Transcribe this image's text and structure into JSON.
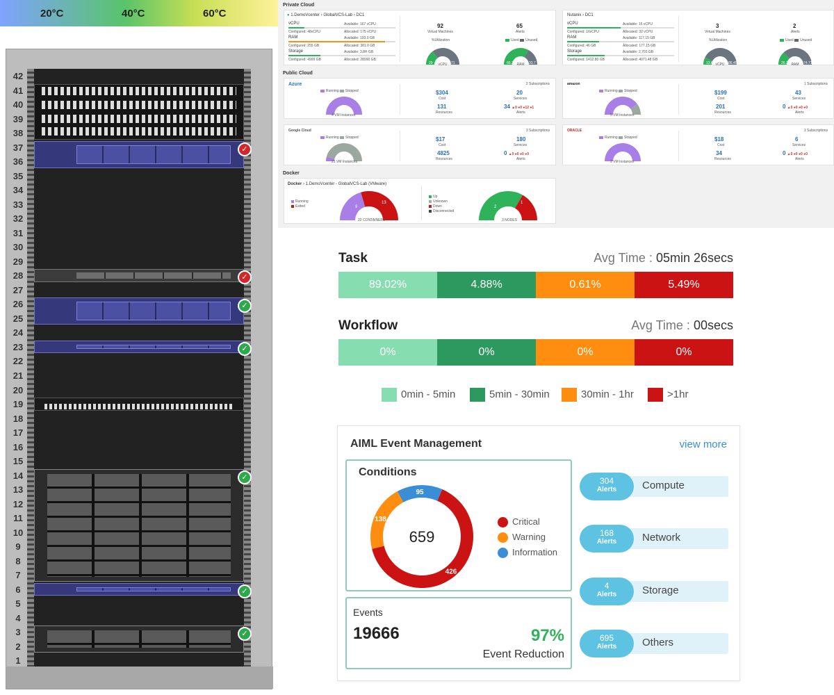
{
  "temperature": {
    "labels": [
      "20°C",
      "40°C",
      "60°C"
    ]
  },
  "rack": {
    "units": [
      "42",
      "41",
      "40",
      "39",
      "38",
      "37",
      "36",
      "35",
      "34",
      "33",
      "32",
      "31",
      "30",
      "29",
      "28",
      "27",
      "26",
      "25",
      "24",
      "23",
      "22",
      "21",
      "20",
      "19",
      "18",
      "17",
      "16",
      "15",
      "14",
      "13",
      "12",
      "11",
      "10",
      "9",
      "8",
      "7",
      "6",
      "5",
      "4",
      "3",
      "2",
      "1"
    ],
    "devices": [
      {
        "type": "patch",
        "top_u": 41,
        "size_u": 4,
        "status": ""
      },
      {
        "type": "blue",
        "top_u": 37,
        "size_u": 2,
        "status": "bad"
      },
      {
        "type": "gray",
        "top_u": 28,
        "size_u": 1,
        "status": "bad"
      },
      {
        "type": "blue",
        "top_u": 26,
        "size_u": 2,
        "status": "ok"
      },
      {
        "type": "blue",
        "top_u": 23,
        "size_u": 1,
        "status": "ok"
      },
      {
        "type": "switch",
        "top_u": 19,
        "size_u": 1,
        "status": ""
      },
      {
        "type": "storage",
        "top_u": 14,
        "size_u": 8,
        "status": "ok"
      },
      {
        "type": "blue",
        "top_u": 6,
        "size_u": 1,
        "status": "ok"
      },
      {
        "type": "storage",
        "top_u": 3,
        "size_u": 2,
        "status": "ok"
      }
    ]
  },
  "cloud": {
    "private_title": "Private Cloud",
    "public_title": "Public Cloud",
    "docker_title": "Docker",
    "vcenter": {
      "name": "1.DemoVcenter",
      "path": "GlobalVCS-Lab",
      "dc": "DC1",
      "metrics": [
        {
          "label": "vCPU",
          "avail": "Available: 167 vCPU",
          "conf": "Configured: 48vCPU",
          "alloc": "Allocated: 175 vCPU",
          "color": "#2fb35a",
          "pct": 0.15
        },
        {
          "label": "RAM",
          "avail": "Available: 193.0 GB",
          "conf": "Configured: 255 GB",
          "alloc": "Allocated: 381.0 GB",
          "color": "#ff8d10",
          "pct": 0.9
        },
        {
          "label": "Storage",
          "avail": "Available: 3.8H GB",
          "conf": "Configured: 4999 GB",
          "alloc": "Allocated: 28990 GB",
          "color": "#2fb35a",
          "pct": 0.3
        }
      ],
      "vms": "92",
      "vms_label": "Virtual Machines",
      "alerts": "65",
      "alerts_label": "Alerts",
      "util_label": "%Utilization",
      "used_label": "Used",
      "unused_label": "Unused",
      "gauge1": {
        "label": "vCPU",
        "used": "29",
        "unused": "71",
        "pct": 0.29
      },
      "gauge2": {
        "label": "RAM",
        "used": "66.3",
        "unused": "33.7",
        "pct": 0.66
      }
    },
    "nutanix": {
      "name": "Nutanix",
      "dc": "DC1",
      "metrics": [
        {
          "label": "vCPU",
          "avail": "Available: 16 vCPU",
          "conf": "Configured: 16vCPU",
          "alloc": "Allocated: 32 vCPU",
          "color": "#2fb35a",
          "pct": 0.5
        },
        {
          "label": "RAM",
          "avail": "Available: 117.15 GB",
          "conf": "Configured: 46 GB",
          "alloc": "Allocated: 177.15 GB",
          "color": "#2fb35a",
          "pct": 0.3
        },
        {
          "label": "Storage",
          "avail": "Available: 2,703 GB",
          "conf": "Configured: 1412.80 GB",
          "alloc": "Allocated: 4071.48 GB",
          "color": "#2fb35a",
          "pct": 0.35
        }
      ],
      "vms": "3",
      "vms_label": "Virtual Machines",
      "alerts": "2",
      "alerts_label": "Alerts",
      "util_label": "%Utilization",
      "used_label": "Used",
      "unused_label": "Unused",
      "gauge1": {
        "label": "vCPU",
        "used": "13.6",
        "unused": "86.45",
        "pct": 0.14
      },
      "gauge2": {
        "label": "RAM",
        "used": "26.29",
        "unused": "74.71",
        "pct": 0.26
      }
    },
    "azure": {
      "name": "Azure",
      "subs": "2 Subscriptions",
      "cost": "$304",
      "cost_label": "Cost",
      "services": "20",
      "services_label": "Services",
      "resources": "131",
      "resources_label": "Resources",
      "alerts": "34",
      "alerts_extra": "▲0 ●0 ●12 ●1",
      "alerts_label": "Alerts",
      "running": "Running",
      "stopped": "Stopped",
      "vm_count": "4",
      "vm_label": "4 VM Instances"
    },
    "amazon": {
      "name": "amazon",
      "subs": "1 Subscriptions",
      "cost": "$199",
      "cost_label": "Cost",
      "services": "43",
      "services_label": "Services",
      "resources": "201",
      "resources_label": "Resources",
      "alerts": "0",
      "alerts_extra": "▲0 ●0 ●0 ●0",
      "alerts_label": "Alerts",
      "running": "Running",
      "stopped": "Stopped",
      "vm_count": "4",
      "vm_stop": "1",
      "vm_label": "5 VM Instances"
    },
    "google": {
      "name": "Google Cloud",
      "subs": "3 Subscriptions",
      "cost": "$17",
      "cost_label": "Cost",
      "services": "180",
      "services_label": "Services",
      "resources": "4825",
      "resources_label": "Resources",
      "alerts": "0",
      "alerts_extra": "▲0 ●0 ●0 ●0",
      "alerts_label": "Alerts",
      "running": "Running",
      "stopped": "Stopped",
      "vm_count": "19",
      "vm_run": "2",
      "vm_label": "21 VM Instances"
    },
    "oracle": {
      "name": "ORACLE",
      "subs": "1 Subscriptions",
      "cost": "$18",
      "cost_label": "Cost",
      "services": "6",
      "services_label": "Services",
      "resources": "34",
      "resources_label": "Resources",
      "alerts": "0",
      "alerts_extra": "▲0 ●0 ●0 ●0",
      "alerts_label": "Alerts",
      "running": "Running",
      "stopped": "Stopped",
      "vm_count": "2",
      "vm_label": "2 VM Instances"
    },
    "docker": {
      "name": "Docker",
      "path": "1.DemoVcenter - GlobalVCS-Lab (VMware)",
      "running": "Running",
      "exited": "Exited",
      "containers_run": "9",
      "containers_exit": "13",
      "containers_label": "22 CONTAINERS",
      "up": "Up",
      "unknown": "Unknown",
      "down": "Down",
      "disconnected": "Disconnected",
      "nodes_up": "2",
      "nodes_down": "1",
      "nodes_label": "3 NODES"
    }
  },
  "task": {
    "title": "Task",
    "avg_label": "Avg Time :",
    "avg_value": "05min 26secs",
    "segments": [
      "89.02%",
      "4.88%",
      "0.61%",
      "5.49%"
    ]
  },
  "workflow": {
    "title": "Workflow",
    "avg_label": "Avg Time :",
    "avg_value": "00secs",
    "segments": [
      "0%",
      "0%",
      "0%",
      "0%"
    ]
  },
  "time_legend": [
    {
      "label": "0min - 5min",
      "color": "#86ddb0"
    },
    {
      "label": "5min - 30min",
      "color": "#2c9a5e"
    },
    {
      "label": "30min - 1hr",
      "color": "#ff8d10"
    },
    {
      "label": ">1hr",
      "color": "#cc1313"
    }
  ],
  "aiml": {
    "title": "AIML Event Management",
    "view_more": "view more",
    "conditions_title": "Conditions",
    "total": "659",
    "critical": {
      "label": "Critical",
      "value": 426,
      "color": "#cc1313"
    },
    "warning": {
      "label": "Warning",
      "value": 138,
      "color": "#ff8d10"
    },
    "information": {
      "label": "Information",
      "value": 95,
      "color": "#3a8ed6"
    },
    "events_label": "Events",
    "events_count": "19666",
    "reduction_pct": "97%",
    "reduction_label": "Event Reduction",
    "alerts": [
      {
        "count": "304",
        "unit": "Alerts",
        "name": "Compute"
      },
      {
        "count": "168",
        "unit": "Alerts",
        "name": "Network"
      },
      {
        "count": "4",
        "unit": "Alerts",
        "name": "Storage"
      },
      {
        "count": "695",
        "unit": "Alerts",
        "name": "Others"
      }
    ]
  }
}
